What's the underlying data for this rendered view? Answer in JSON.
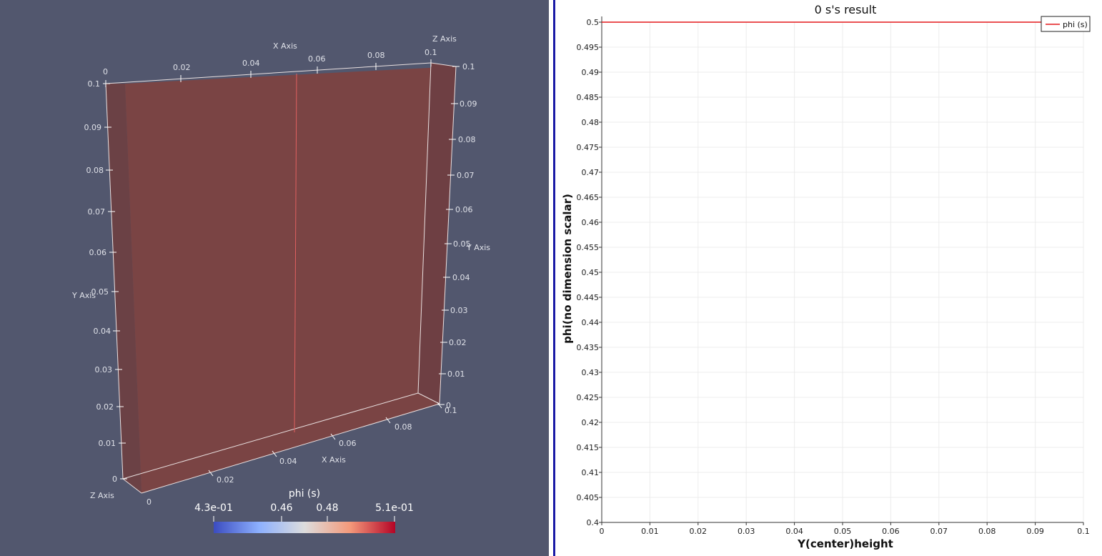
{
  "render_view": {
    "x_axis_title": "X Axis",
    "y_axis_title": "Y Axis",
    "z_axis_title": "Z Axis",
    "top_x_ticks": [
      "0",
      "0.02",
      "0.04",
      "0.06",
      "0.08",
      "0.1"
    ],
    "left_y_ticks": [
      "0.1",
      "0.09",
      "0.08",
      "0.07",
      "0.06",
      "0.05",
      "0.04",
      "0.03",
      "0.02",
      "0.01",
      "0"
    ],
    "right_y_ticks": [
      "0.1",
      "0.09",
      "0.08",
      "0.07",
      "0.06",
      "0.05",
      "0.04",
      "0.03",
      "0.02",
      "0.01",
      "0"
    ],
    "bottom_x_ticks": [
      "0.02",
      "0.04",
      "0.06",
      "0.08",
      "0.1"
    ],
    "bottom_z_tick": "0",
    "colorbar": {
      "title": "phi (s)",
      "labels": [
        "4.3e-01",
        "0.46",
        "0.48",
        "5.1e-01"
      ],
      "colors": [
        "#3b4cc0",
        "#dddddd",
        "#b40426"
      ]
    },
    "background_color": "#52576e",
    "box_color": "#7a4444"
  },
  "chart_data": {
    "type": "line",
    "title": "0 s's result",
    "xlabel": "Y(center)height",
    "ylabel": "phi(no dimension scalar)",
    "xlim": [
      0,
      0.1
    ],
    "ylim": [
      0.4,
      0.5
    ],
    "x_ticks": [
      "0",
      "0.01",
      "0.02",
      "0.03",
      "0.04",
      "0.05",
      "0.06",
      "0.07",
      "0.08",
      "0.09",
      "0.1"
    ],
    "y_ticks": [
      "0.5",
      "0.495",
      "0.49",
      "0.485",
      "0.48",
      "0.475",
      "0.47",
      "0.465",
      "0.46",
      "0.455",
      "0.45",
      "0.445",
      "0.44",
      "0.435",
      "0.43",
      "0.425",
      "0.42",
      "0.415",
      "0.41",
      "0.405",
      "0.4"
    ],
    "grid": true,
    "legend_position": "top-right",
    "series": [
      {
        "name": "phi (s)",
        "color": "#e3191c",
        "x": [
          0,
          0.1
        ],
        "y": [
          0.5,
          0.5
        ]
      }
    ]
  }
}
